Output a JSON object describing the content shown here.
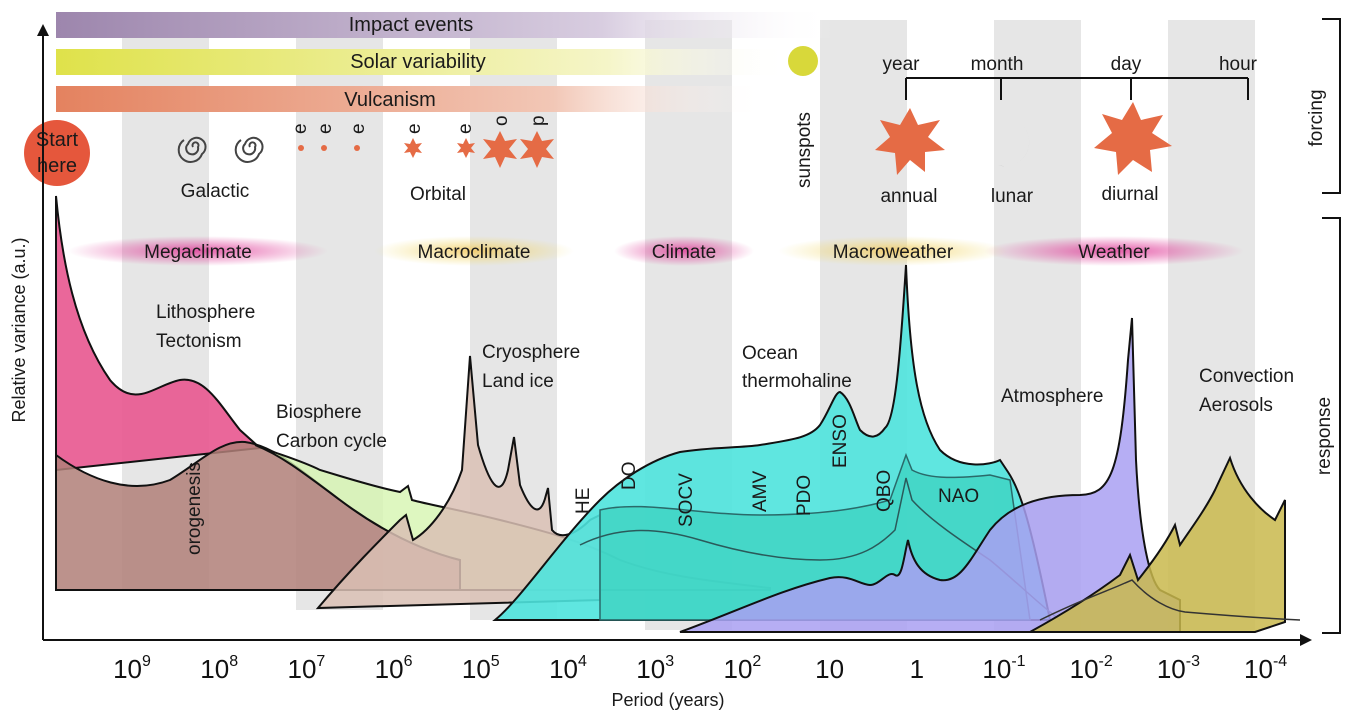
{
  "forcing_bars": {
    "impact": "Impact events",
    "solar": "Solar variability",
    "vulcanism": "Vulcanism"
  },
  "start": {
    "line1": "Start",
    "line2": "here"
  },
  "forcing_labels": {
    "galactic": "Galactic",
    "orbital": "Orbital",
    "orbital_e": "e",
    "orbital_o": "o",
    "orbital_p": "p",
    "sunspots": "sunspots",
    "year": "year",
    "month": "month",
    "day": "day",
    "hour": "hour",
    "annual": "annual",
    "lunar": "lunar",
    "diurnal": "diurnal"
  },
  "regimes": [
    "Megaclimate",
    "Macroclimate",
    "Climate",
    "Macroweather",
    "Weather"
  ],
  "processes": {
    "litho1": "Lithosphere",
    "litho2": "Tectonism",
    "bio1": "Biosphere",
    "bio2": "Carbon cycle",
    "cryo1": "Cryosphere",
    "cryo2": "Land ice",
    "ocean1": "Ocean",
    "ocean2": "thermohaline",
    "atmosphere": "Atmosphere",
    "conv1": "Convection",
    "conv2": "Aerosols",
    "orogenesis": "orogenesis",
    "he": "HE",
    "do": "DO",
    "socv": "SOCV",
    "amv": "AMV",
    "pdo": "PDO",
    "enso": "ENSO",
    "qbo": "QBO",
    "nao": "NAO"
  },
  "side_labels": {
    "forcing": "forcing",
    "response": "response"
  },
  "axes": {
    "xlabel": "Period (years)",
    "ylabel": "Relative variance (a.u.)"
  },
  "ticks": [
    {
      "base": "10",
      "exp": "9"
    },
    {
      "base": "10",
      "exp": "8"
    },
    {
      "base": "10",
      "exp": "7"
    },
    {
      "base": "10",
      "exp": "6"
    },
    {
      "base": "10",
      "exp": "5"
    },
    {
      "base": "10",
      "exp": "4"
    },
    {
      "base": "10",
      "exp": "3"
    },
    {
      "base": "10",
      "exp": "2"
    },
    {
      "base": "10",
      "exp": ""
    },
    {
      "base": "1",
      "exp": ""
    },
    {
      "base": "10",
      "exp": "-1"
    },
    {
      "base": "10",
      "exp": "-2"
    },
    {
      "base": "10",
      "exp": "-3"
    },
    {
      "base": "10",
      "exp": "-4"
    }
  ],
  "colors": {
    "lithosphere": "#e8578f",
    "orogeny": "#b07f78",
    "biosphere": "#d6f5b0",
    "cryosphere": "#d9bfb4",
    "ocean": "#4ee3dd",
    "ocean_inner": "#3fd3c2",
    "atmosphere": "#a9a0f2",
    "convection": "#c9b94c",
    "forcing_orange": "#e56b45",
    "start": "#e5573c"
  }
}
